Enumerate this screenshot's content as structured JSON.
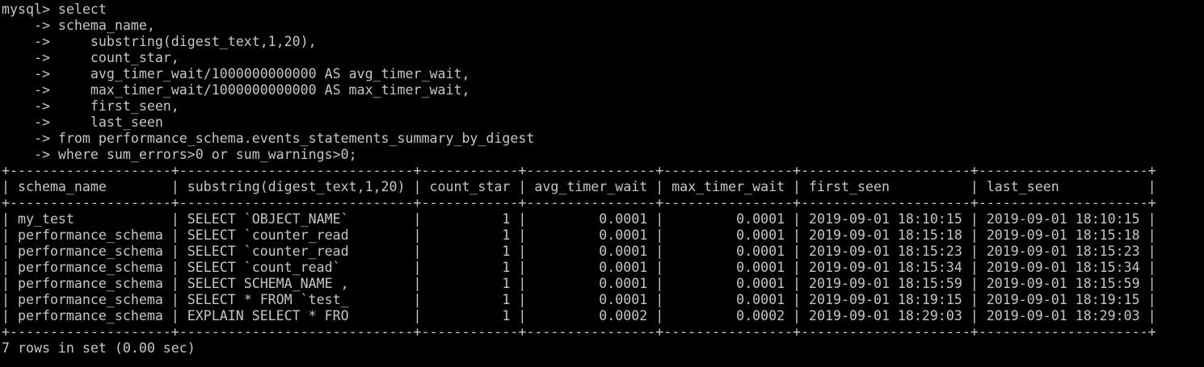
{
  "terminal": {
    "bg_color": "#000000",
    "text_color": "#c6c6c6",
    "prompt": "mysql>",
    "continuation_prompt": "->",
    "query_lines": [
      "mysql> select",
      "    -> schema_name,",
      "    ->     substring(digest_text,1,20),",
      "    ->     count_star,",
      "    ->     avg_timer_wait/1000000000000 AS avg_timer_wait,",
      "    ->     max_timer_wait/1000000000000 AS max_timer_wait,",
      "    ->     first_seen,",
      "    ->     last_seen",
      "    -> from performance_schema.events_statements_summary_by_digest",
      "    -> where sum_errors>0 or sum_warnings>0;"
    ],
    "result_table": {
      "columns": [
        {
          "label": "schema_name",
          "width": 18,
          "align": "left"
        },
        {
          "label": "substring(digest_text,1,20)",
          "width": 27,
          "align": "left"
        },
        {
          "label": "count_star",
          "width": 10,
          "align": "right"
        },
        {
          "label": "avg_timer_wait",
          "width": 14,
          "align": "right"
        },
        {
          "label": "max_timer_wait",
          "width": 14,
          "align": "right"
        },
        {
          "label": "first_seen",
          "width": 19,
          "align": "left"
        },
        {
          "label": "last_seen",
          "width": 19,
          "align": "left"
        }
      ],
      "rows": [
        [
          "my_test",
          "SELECT `OBJECT_NAME`",
          "1",
          "0.0001",
          "0.0001",
          "2019-09-01 18:10:15",
          "2019-09-01 18:10:15"
        ],
        [
          "performance_schema",
          "SELECT `counter_read",
          "1",
          "0.0001",
          "0.0001",
          "2019-09-01 18:15:18",
          "2019-09-01 18:15:18"
        ],
        [
          "performance_schema",
          "SELECT `counter_read",
          "1",
          "0.0001",
          "0.0001",
          "2019-09-01 18:15:23",
          "2019-09-01 18:15:23"
        ],
        [
          "performance_schema",
          "SELECT `count_read`",
          "1",
          "0.0001",
          "0.0001",
          "2019-09-01 18:15:34",
          "2019-09-01 18:15:34"
        ],
        [
          "performance_schema",
          "SELECT SCHEMA_NAME ,",
          "1",
          "0.0001",
          "0.0001",
          "2019-09-01 18:15:59",
          "2019-09-01 18:15:59"
        ],
        [
          "performance_schema",
          "SELECT * FROM `test_",
          "1",
          "0.0001",
          "0.0001",
          "2019-09-01 18:19:15",
          "2019-09-01 18:19:15"
        ],
        [
          "performance_schema",
          "EXPLAIN SELECT * FRO",
          "1",
          "0.0002",
          "0.0002",
          "2019-09-01 18:29:03",
          "2019-09-01 18:29:03"
        ]
      ]
    },
    "status_line": "7 rows in set (0.00 sec)"
  }
}
